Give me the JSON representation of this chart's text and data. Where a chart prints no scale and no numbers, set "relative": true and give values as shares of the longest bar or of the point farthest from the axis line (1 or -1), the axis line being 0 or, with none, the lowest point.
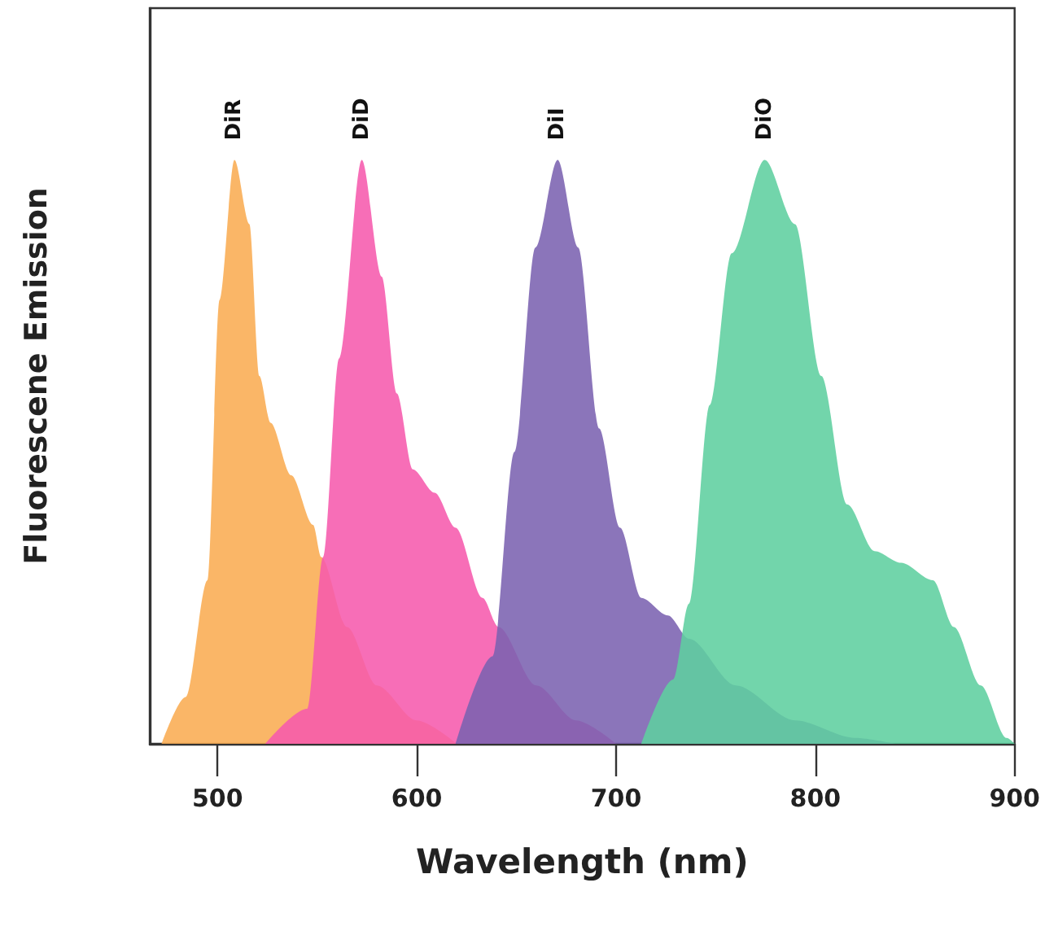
{
  "chart_data": {
    "type": "area",
    "xlabel": "Wavelength (nm)",
    "ylabel": "Fluorescene Emission",
    "relative": true,
    "xlim": [
      466,
      900
    ],
    "xticks": [
      500,
      600,
      700,
      800,
      900
    ],
    "series": [
      {
        "name": "DiR",
        "color": "#f9ac52",
        "x": [
          472,
          484,
          495,
          501,
          508.5,
          516,
          521,
          526.6,
          537,
          548,
          552,
          565,
          580,
          600,
          620
        ],
        "values": [
          0,
          0.08,
          0.28,
          0.76,
          1,
          0.89,
          0.63,
          0.55,
          0.46,
          0.375,
          0.32,
          0.2,
          0.1,
          0.04,
          0
        ]
      },
      {
        "name": "DiD",
        "color": "#f65aad",
        "x": [
          524,
          545,
          553,
          561,
          572.4,
          582.4,
          590,
          598,
          609,
          619.5,
          633,
          641,
          660,
          680,
          700
        ],
        "values": [
          0,
          0.06,
          0.32,
          0.66,
          1,
          0.8,
          0.6,
          0.47,
          0.43,
          0.37,
          0.25,
          0.2,
          0.1,
          0.04,
          0
        ]
      },
      {
        "name": "DiI",
        "color": "#7b62b0",
        "x": [
          619.5,
          638,
          649,
          659.5,
          670.7,
          681,
          691.5,
          702,
          712.7,
          726,
          736.6,
          760,
          790,
          820,
          840
        ],
        "values": [
          0,
          0.15,
          0.5,
          0.85,
          1,
          0.85,
          0.54,
          0.37,
          0.25,
          0.22,
          0.18,
          0.1,
          0.04,
          0.01,
          0
        ]
      },
      {
        "name": "DiO",
        "color": "#5fcf9f",
        "x": [
          712.7,
          728.6,
          736.6,
          747,
          758,
          774.6,
          789.8,
          803,
          816,
          829.7,
          843,
          859,
          869.5,
          883,
          896,
          900
        ],
        "values": [
          0,
          0.11,
          0.24,
          0.58,
          0.84,
          1,
          0.89,
          0.63,
          0.41,
          0.33,
          0.31,
          0.28,
          0.2,
          0.1,
          0.01,
          0
        ]
      }
    ]
  }
}
